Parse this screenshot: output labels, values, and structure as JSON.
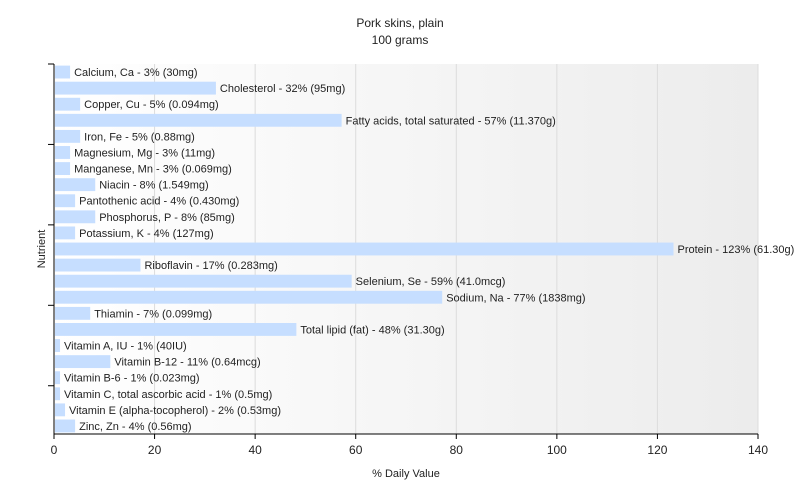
{
  "chart_data": {
    "type": "bar",
    "orientation": "horizontal",
    "title": "Pork skins, plain",
    "subtitle": "100 grams",
    "xlabel": "% Daily Value",
    "ylabel": "Nutrient",
    "xlim": [
      0,
      140
    ],
    "xticks": [
      0,
      20,
      40,
      60,
      80,
      100,
      120,
      140
    ],
    "grid": true,
    "bar_color": "#c6deff",
    "categories": [
      "Calcium, Ca",
      "Cholesterol",
      "Copper, Cu",
      "Fatty acids, total saturated",
      "Iron, Fe",
      "Magnesium, Mg",
      "Manganese, Mn",
      "Niacin",
      "Pantothenic acid",
      "Phosphorus, P",
      "Potassium, K",
      "Protein",
      "Riboflavin",
      "Selenium, Se",
      "Sodium, Na",
      "Thiamin",
      "Total lipid (fat)",
      "Vitamin A, IU",
      "Vitamin B-12",
      "Vitamin B-6",
      "Vitamin C, total ascorbic acid",
      "Vitamin E (alpha-tocopherol)",
      "Zinc, Zn"
    ],
    "values": [
      3,
      32,
      5,
      57,
      5,
      3,
      3,
      8,
      4,
      8,
      4,
      123,
      17,
      59,
      77,
      7,
      48,
      1,
      11,
      1,
      1,
      2,
      4
    ],
    "bar_labels": [
      "Calcium, Ca - 3% (30mg)",
      "Cholesterol - 32% (95mg)",
      "Copper, Cu - 5% (0.094mg)",
      "Fatty acids, total saturated - 57% (11.370g)",
      "Iron, Fe - 5% (0.88mg)",
      "Magnesium, Mg - 3% (11mg)",
      "Manganese, Mn - 3% (0.069mg)",
      "Niacin - 8% (1.549mg)",
      "Pantothenic acid - 4% (0.430mg)",
      "Phosphorus, P - 8% (85mg)",
      "Potassium, K - 4% (127mg)",
      "Protein - 123% (61.30g)",
      "Riboflavin - 17% (0.283mg)",
      "Selenium, Se - 59% (41.0mcg)",
      "Sodium, Na - 77% (1838mg)",
      "Thiamin - 7% (0.099mg)",
      "Total lipid (fat) - 48% (31.30g)",
      "Vitamin A, IU - 1% (40IU)",
      "Vitamin B-12 - 11% (0.64mcg)",
      "Vitamin B-6 - 1% (0.023mg)",
      "Vitamin C, total ascorbic acid - 1% (0.5mg)",
      "Vitamin E (alpha-tocopherol) - 2% (0.53mg)",
      "Zinc, Zn - 4% (0.56mg)"
    ]
  }
}
